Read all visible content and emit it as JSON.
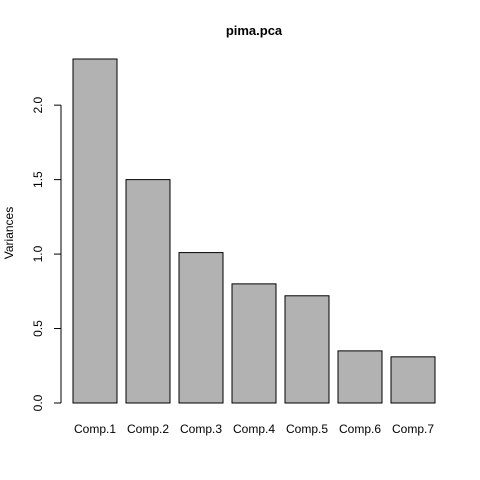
{
  "chart_data": {
    "type": "bar",
    "title": "pima.pca",
    "xlabel": "",
    "ylabel": "Variances",
    "categories": [
      "Comp.1",
      "Comp.2",
      "Comp.3",
      "Comp.4",
      "Comp.5",
      "Comp.6",
      "Comp.7"
    ],
    "values": [
      2.31,
      1.5,
      1.01,
      0.8,
      0.72,
      0.35,
      0.31
    ],
    "ylim": [
      0,
      2.31
    ],
    "yticks": [
      0.0,
      0.5,
      1.0,
      1.5,
      2.0
    ],
    "ytick_labels": [
      "0.0",
      "0.5",
      "1.0",
      "1.5",
      "2.0"
    ],
    "bar_color": "#b2b2b2",
    "grid": false
  }
}
